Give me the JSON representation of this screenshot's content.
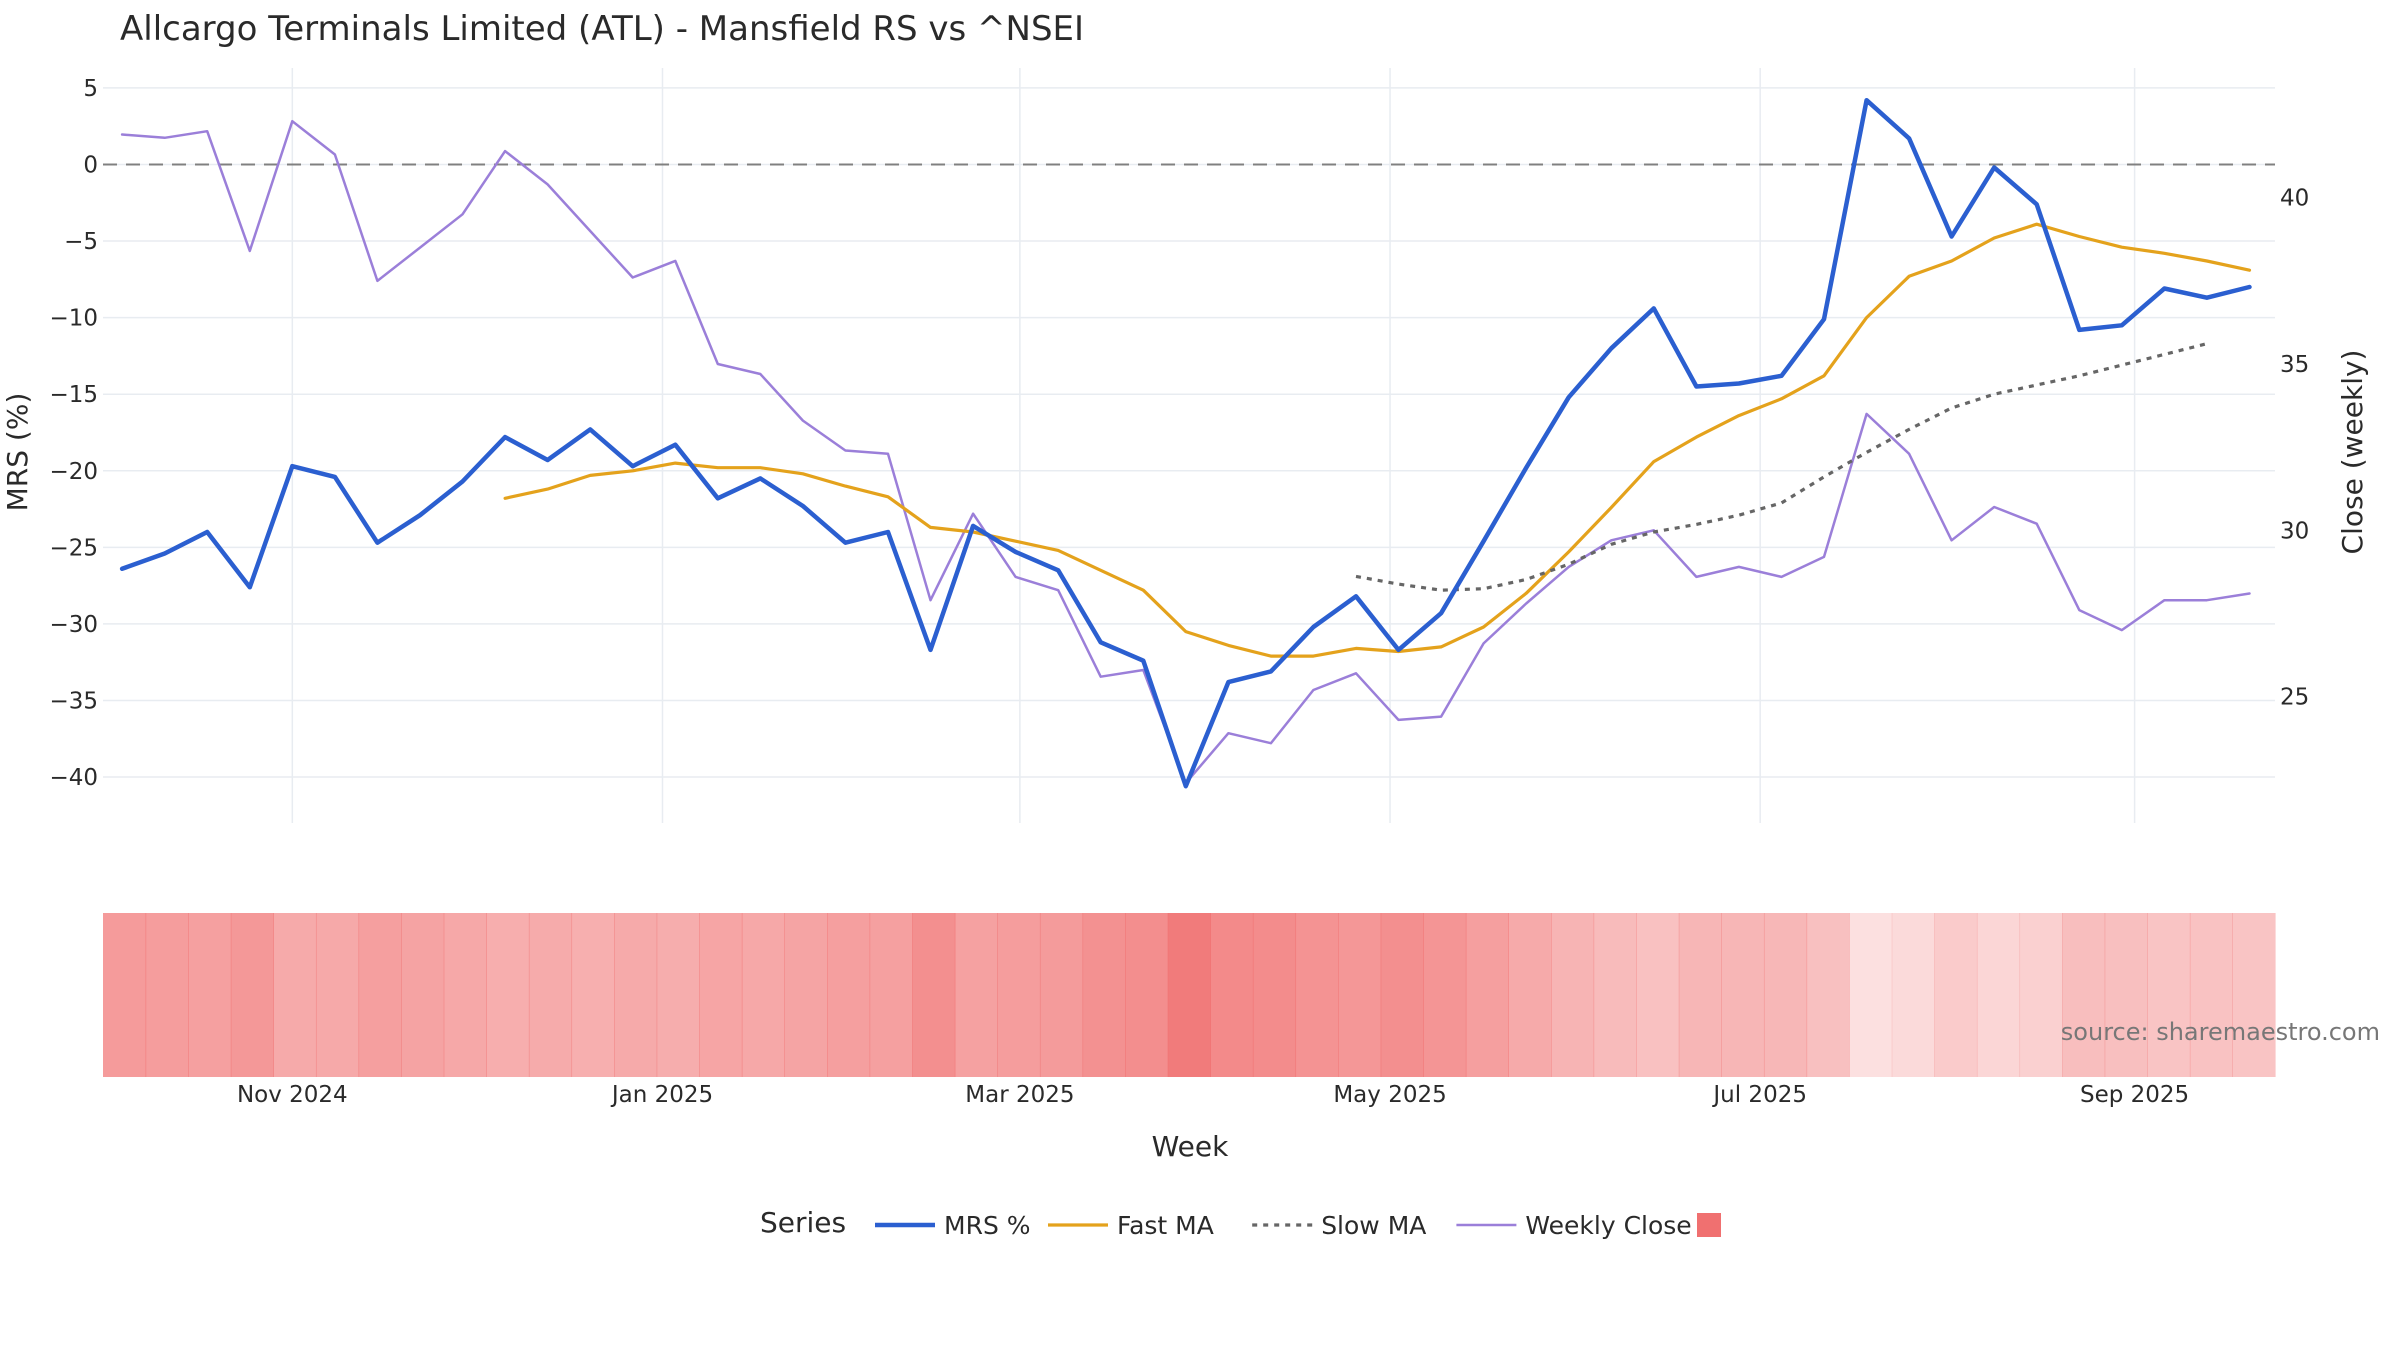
{
  "chart_data": {
    "type": "line",
    "title": "Allcargo Terminals Limited (ATL) - Mansfield RS vs ^NSEI",
    "xlabel": "Week",
    "ylabel": "MRS (%)",
    "y2label": "Close (weekly)",
    "source": "source: sharemaestro.com",
    "x_ticks": [
      {
        "label": "Nov 2024",
        "week": 4
      },
      {
        "label": "Jan 2025",
        "week": 12.7
      },
      {
        "label": "Mar 2025",
        "week": 21.1
      },
      {
        "label": "May 2025",
        "week": 29.8
      },
      {
        "label": "Jul 2025",
        "week": 38.5
      },
      {
        "label": "Sep 2025",
        "week": 47.3
      }
    ],
    "xlim": [
      -0.45,
      50.6
    ],
    "ylim": [
      -43,
      6.3
    ],
    "y_ticks": [
      5,
      0,
      -5,
      -10,
      -15,
      -20,
      -25,
      -30,
      -35,
      -40
    ],
    "y2lim": [
      21.2,
      43.9
    ],
    "y2_ticks": [
      40,
      35,
      30,
      25
    ],
    "zero_line": 0,
    "grid": true,
    "legend": {
      "title": "Series",
      "placement": "bottom-center",
      "entries": [
        "MRS %",
        "Fast MA",
        "Slow MA",
        "Weekly Close",
        ""
      ]
    },
    "series": [
      {
        "name": "MRS %",
        "axis": "left",
        "color": "#2b5fd0",
        "style": "solid",
        "start": 0,
        "values": [
          -26.4,
          -25.4,
          -24.0,
          -27.6,
          -19.7,
          -20.4,
          -24.7,
          -22.9,
          -20.7,
          -17.8,
          -19.3,
          -17.3,
          -19.7,
          -18.3,
          -21.8,
          -20.5,
          -22.3,
          -24.7,
          -24.0,
          -31.7,
          -23.6,
          -25.3,
          -26.5,
          -31.2,
          -32.4,
          -40.6,
          -33.8,
          -33.1,
          -30.2,
          -28.2,
          -31.7,
          -29.3,
          -24.6,
          -19.8,
          -15.2,
          -12.0,
          -9.4,
          -14.5,
          -14.3,
          -13.8,
          -10.1,
          4.2,
          1.7,
          -4.7,
          -0.2,
          -2.6,
          -10.8,
          -10.5,
          -8.1,
          -8.7,
          -8.0
        ]
      },
      {
        "name": "Fast MA",
        "axis": "left",
        "color": "#e4a21c",
        "style": "solid",
        "start": 9,
        "values": [
          -21.8,
          -21.2,
          -20.3,
          -20.0,
          -19.5,
          -19.8,
          -19.8,
          -20.2,
          -21.0,
          -21.7,
          -23.7,
          -24.0,
          -24.6,
          -25.2,
          -26.5,
          -27.8,
          -30.5,
          -31.4,
          -32.1,
          -32.1,
          -31.6,
          -31.8,
          -31.5,
          -30.2,
          -28.0,
          -25.3,
          -22.4,
          -19.4,
          -17.8,
          -16.4,
          -15.3,
          -13.8,
          -10.0,
          -7.3,
          -6.3,
          -4.8,
          -3.9,
          -4.7,
          -5.4,
          -5.8,
          -6.3,
          -6.9
        ]
      },
      {
        "name": "Slow MA",
        "axis": "left",
        "color": "#666666",
        "style": "dotted",
        "start": 29,
        "values": [
          -26.9,
          -27.4,
          -27.8,
          -27.7,
          -27.1,
          -26.1,
          -24.8,
          -24.0,
          -23.5,
          -22.9,
          -22.1,
          -20.4,
          -18.8,
          -17.3,
          -15.9,
          -15.0,
          -14.4,
          -13.8,
          -13.1,
          -12.4,
          -11.7
        ]
      },
      {
        "name": "Weekly Close",
        "axis": "right",
        "color": "#9b7fd9",
        "style": "solid",
        "start": 0,
        "values": [
          41.9,
          41.8,
          42.0,
          38.4,
          42.3,
          41.3,
          37.5,
          38.5,
          39.5,
          41.4,
          40.4,
          39.0,
          37.6,
          38.1,
          35.0,
          34.7,
          33.3,
          32.4,
          32.3,
          27.9,
          30.5,
          28.6,
          28.2,
          25.6,
          25.8,
          22.4,
          23.9,
          23.6,
          25.2,
          25.7,
          24.3,
          24.4,
          26.6,
          27.8,
          28.9,
          29.7,
          30.0,
          28.6,
          28.9,
          28.6,
          29.2,
          33.5,
          32.3,
          29.7,
          30.7,
          30.2,
          27.6,
          27.0,
          27.9,
          27.9,
          28.1
        ]
      }
    ],
    "heatmap_strip": {
      "color": "#f07070",
      "start": -0.45,
      "values": [
        -26.4,
        -25.4,
        -24.0,
        -27.6,
        -19.7,
        -20.4,
        -24.7,
        -22.9,
        -20.7,
        -17.8,
        -19.3,
        -17.3,
        -19.7,
        -18.3,
        -21.8,
        -20.5,
        -22.3,
        -24.7,
        -24.0,
        -31.7,
        -23.6,
        -25.3,
        -26.5,
        -31.2,
        -32.4,
        -40.6,
        -33.8,
        -33.1,
        -30.2,
        -28.2,
        -31.7,
        -29.3,
        -24.6,
        -19.8,
        -15.2,
        -12.0,
        -9.4,
        -14.5,
        -14.3,
        -13.8,
        -10.1,
        4.2,
        1.7,
        -4.7,
        -0.2,
        -2.6,
        -10.8,
        -10.5,
        -8.1,
        -8.7,
        -8.0
      ]
    }
  }
}
